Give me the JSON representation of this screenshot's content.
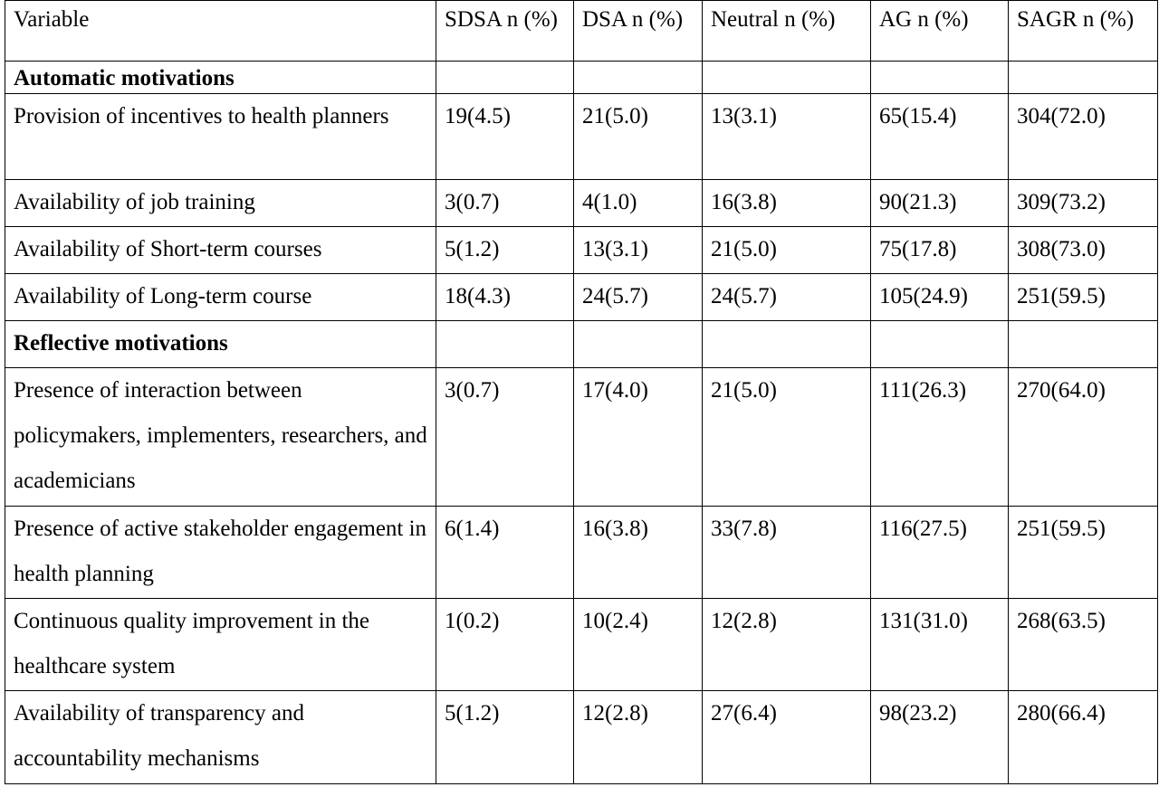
{
  "table": {
    "headers": [
      "Variable",
      "SDSA n (%)",
      "DSA n (%)",
      "Neutral n (%)",
      "AG n (%)",
      "SAGR n (%)"
    ],
    "sections": [
      {
        "title": "Automatic motivations",
        "rows": [
          {
            "variable": "Provision of incentives to health planners",
            "values": [
              "19(4.5)",
              "21(5.0)",
              "13(3.1)",
              "65(15.4)",
              "304(72.0)"
            ]
          },
          {
            "variable": "Availability of job training",
            "values": [
              "3(0.7)",
              "4(1.0)",
              "16(3.8)",
              "90(21.3)",
              "309(73.2)"
            ]
          },
          {
            "variable": "Availability of Short-term courses",
            "values": [
              "5(1.2)",
              "13(3.1)",
              "21(5.0)",
              "75(17.8)",
              "308(73.0)"
            ]
          },
          {
            "variable": "Availability of Long-term course",
            "values": [
              "18(4.3)",
              "24(5.7)",
              "24(5.7)",
              "105(24.9)",
              "251(59.5)"
            ]
          }
        ]
      },
      {
        "title": "Reflective motivations",
        "rows": [
          {
            "variable": "Presence of interaction between policymakers, implementers, researchers, and academicians",
            "values": [
              "3(0.7)",
              "17(4.0)",
              "21(5.0)",
              "111(26.3)",
              "270(64.0)"
            ]
          },
          {
            "variable": "Presence of active stakeholder engagement in health planning",
            "values": [
              "6(1.4)",
              "16(3.8)",
              "33(7.8)",
              "116(27.5)",
              "251(59.5)"
            ]
          },
          {
            "variable": "Continuous quality improvement in the healthcare system",
            "values": [
              "1(0.2)",
              "10(2.4)",
              "12(2.8)",
              "131(31.0)",
              "268(63.5)"
            ]
          },
          {
            "variable": "Availability of transparency and accountability mechanisms",
            "values": [
              "5(1.2)",
              "12(2.8)",
              "27(6.4)",
              "98(23.2)",
              "280(66.4)"
            ]
          }
        ]
      }
    ]
  }
}
